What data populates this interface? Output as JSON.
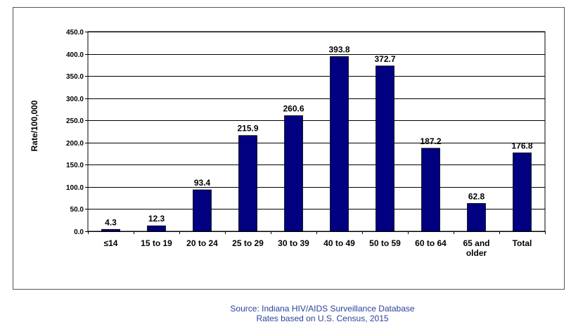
{
  "chart_data": {
    "type": "bar",
    "title": "",
    "xlabel": "",
    "ylabel": "Rate/100,000",
    "ylim": [
      0,
      450
    ],
    "yticks": [
      "0.0",
      "50.0",
      "100.0",
      "150.0",
      "200.0",
      "250.0",
      "300.0",
      "350.0",
      "400.0",
      "450.0"
    ],
    "grid": true,
    "legend": "none",
    "bar_color": "#000080",
    "categories": [
      [
        "≤14"
      ],
      [
        "15 to 19"
      ],
      [
        "20 to 24"
      ],
      [
        "25 to 29"
      ],
      [
        "30 to 39"
      ],
      [
        "40 to 49"
      ],
      [
        "50 to 59"
      ],
      [
        "60 to 64"
      ],
      [
        "65 and",
        "older"
      ],
      [
        "Total"
      ]
    ],
    "values": [
      4.3,
      12.3,
      93.4,
      215.9,
      260.6,
      393.8,
      372.7,
      187.2,
      62.8,
      176.8
    ],
    "value_labels": [
      "4.3",
      "12.3",
      "93.4",
      "215.9",
      "260.6",
      "393.8",
      "372.7",
      "187.2",
      "62.8",
      "176.8"
    ]
  },
  "source": {
    "line1": "Source: Indiana HIV/AIDS Surveillance Database",
    "line2": "Rates based on U.S. Census, 2015"
  }
}
